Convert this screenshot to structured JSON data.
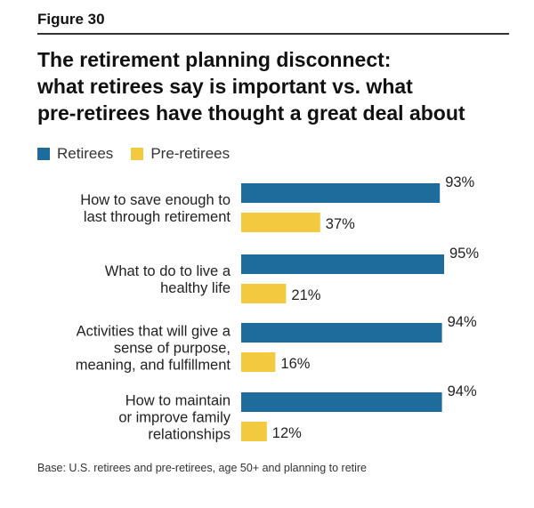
{
  "figure_label": "Figure 30",
  "title_lines": [
    "The retirement planning disconnect:",
    "what retirees say is important vs. what",
    "pre-retirees have thought a great deal about"
  ],
  "base_note": "Base: U.S. retirees and pre-retirees, age 50+ and planning to retire",
  "colors": {
    "retirees": "#1d6c9c",
    "pre_retirees": "#f3c93f"
  },
  "chart_data": {
    "type": "bar",
    "orientation": "horizontal",
    "title": "The retirement planning disconnect: what retirees say is important vs. what pre-retirees have thought a great deal about",
    "legend_placement": "top-left",
    "categories": [
      [
        "How to save enough to",
        "last through retirement"
      ],
      [
        "What to do to live a",
        "healthy life"
      ],
      [
        "Activities that will give a",
        "sense of purpose,",
        "meaning, and fulfillment"
      ],
      [
        "How to maintain",
        "or improve family",
        "relationships"
      ]
    ],
    "series": [
      {
        "name": "Retirees",
        "values": [
          93,
          95,
          94,
          94
        ],
        "labels": [
          "93%",
          "95%",
          "94%",
          "94%"
        ]
      },
      {
        "name": "Pre-retirees",
        "values": [
          37,
          21,
          16,
          12
        ],
        "labels": [
          "37%",
          "21%",
          "16%",
          "12%"
        ]
      }
    ],
    "xlim": [
      0,
      100
    ],
    "grid": false,
    "unit": "%"
  }
}
